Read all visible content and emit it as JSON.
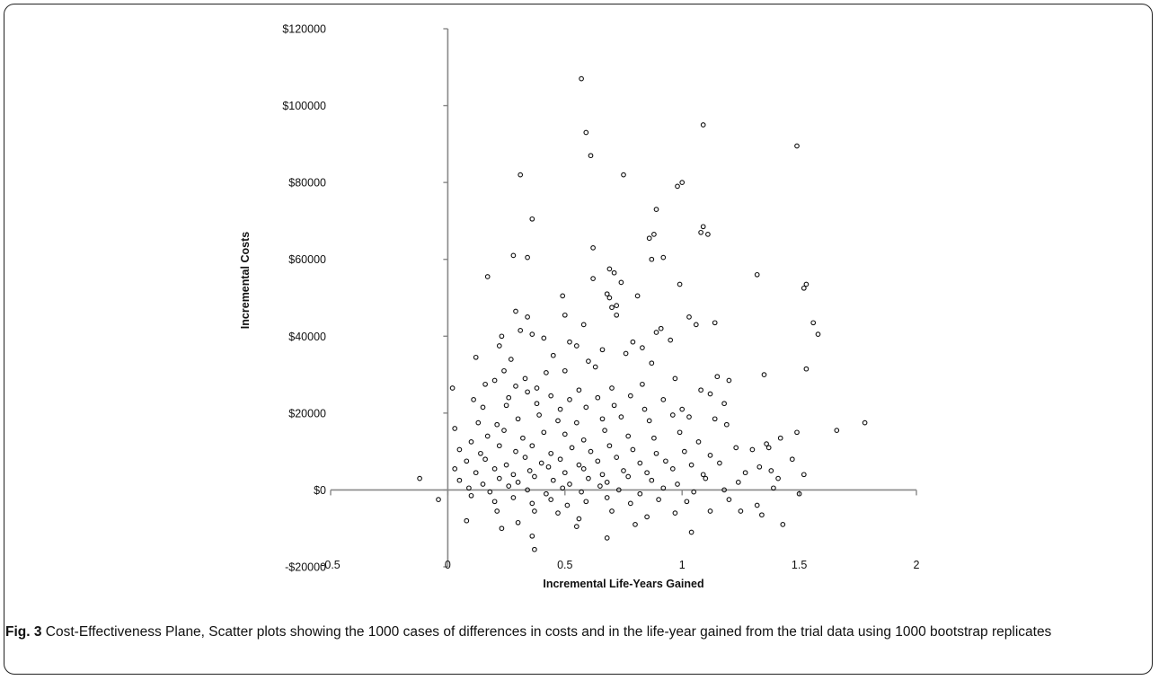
{
  "figure": {
    "label": "Fig. 3",
    "caption": "Cost-Effectiveness Plane, Scatter plots showing the 1000 cases of differences in costs and in the life-year gained from the trial data using 1000 bootstrap replicates"
  },
  "colors": {
    "marker": "#111111",
    "axis": "#888888",
    "frame": "#222222"
  },
  "chart_data": {
    "type": "scatter",
    "title": "",
    "xlabel": "Incremental Life-Years Gained",
    "ylabel": "Incremental Costs",
    "xlim": [
      -0.5,
      2
    ],
    "ylim": [
      -20000,
      120000
    ],
    "xticks": [
      -0.5,
      0,
      0.5,
      1,
      1.5,
      2
    ],
    "xtick_labels": [
      "-0.5",
      "0",
      "0.5",
      "1",
      "1.5",
      "2"
    ],
    "yticks": [
      -20000,
      0,
      20000,
      40000,
      60000,
      80000,
      100000,
      120000
    ],
    "ytick_labels": [
      "-$20000",
      "$0",
      "$20000",
      "$40000",
      "$60000",
      "$80000",
      "$100000",
      "$120000"
    ],
    "axes_cross_at": {
      "x": 0,
      "y": 0
    },
    "grid": false,
    "legend": "none",
    "marker": "open circle",
    "n_points_depicted": 1000,
    "series": [
      {
        "points": [
          [
            0.57,
            107000
          ],
          [
            0.59,
            93000
          ],
          [
            0.61,
            87000
          ],
          [
            1.09,
            95000
          ],
          [
            1.49,
            89500
          ],
          [
            0.31,
            82000
          ],
          [
            0.75,
            82000
          ],
          [
            0.98,
            79000
          ],
          [
            1.0,
            80000
          ],
          [
            0.89,
            73000
          ],
          [
            0.36,
            70500
          ],
          [
            1.09,
            68500
          ],
          [
            1.08,
            67000
          ],
          [
            1.11,
            66500
          ],
          [
            0.86,
            65500
          ],
          [
            0.88,
            66500
          ],
          [
            0.62,
            63000
          ],
          [
            0.28,
            61000
          ],
          [
            0.34,
            60500
          ],
          [
            0.87,
            60000
          ],
          [
            0.92,
            60500
          ],
          [
            0.69,
            57500
          ],
          [
            0.71,
            56500
          ],
          [
            1.32,
            56000
          ],
          [
            0.17,
            55500
          ],
          [
            0.62,
            55000
          ],
          [
            0.74,
            54000
          ],
          [
            1.52,
            52500
          ],
          [
            1.53,
            53500
          ],
          [
            0.99,
            53500
          ],
          [
            0.68,
            51000
          ],
          [
            0.49,
            50500
          ],
          [
            0.69,
            50000
          ],
          [
            0.81,
            50500
          ],
          [
            0.7,
            47500
          ],
          [
            0.29,
            46500
          ],
          [
            0.72,
            48000
          ],
          [
            0.72,
            45500
          ],
          [
            0.5,
            45500
          ],
          [
            0.34,
            45000
          ],
          [
            1.03,
            45000
          ],
          [
            1.56,
            43500
          ],
          [
            1.14,
            43500
          ],
          [
            0.58,
            43000
          ],
          [
            1.06,
            43000
          ],
          [
            1.58,
            40500
          ],
          [
            0.23,
            40000
          ],
          [
            0.31,
            41500
          ],
          [
            0.36,
            40500
          ],
          [
            0.41,
            39500
          ],
          [
            0.52,
            38500
          ],
          [
            0.55,
            37500
          ],
          [
            0.89,
            41000
          ],
          [
            0.91,
            42000
          ],
          [
            0.95,
            39000
          ],
          [
            0.79,
            38500
          ],
          [
            0.83,
            37000
          ],
          [
            0.66,
            36500
          ],
          [
            0.22,
            37500
          ],
          [
            0.27,
            34000
          ],
          [
            0.12,
            34500
          ],
          [
            0.45,
            35000
          ],
          [
            0.6,
            33500
          ],
          [
            0.76,
            35500
          ],
          [
            0.87,
            33000
          ],
          [
            1.35,
            30000
          ],
          [
            1.53,
            31500
          ],
          [
            0.24,
            31000
          ],
          [
            0.33,
            29000
          ],
          [
            0.42,
            30500
          ],
          [
            0.5,
            31000
          ],
          [
            0.63,
            32000
          ],
          [
            0.97,
            29000
          ],
          [
            1.15,
            29500
          ],
          [
            1.2,
            28500
          ],
          [
            0.16,
            27500
          ],
          [
            0.2,
            28500
          ],
          [
            0.29,
            27000
          ],
          [
            0.38,
            26500
          ],
          [
            0.56,
            26000
          ],
          [
            0.7,
            26500
          ],
          [
            0.83,
            27500
          ],
          [
            1.08,
            26000
          ],
          [
            1.12,
            25000
          ],
          [
            0.02,
            26500
          ],
          [
            0.11,
            23500
          ],
          [
            0.26,
            24000
          ],
          [
            0.34,
            25500
          ],
          [
            0.44,
            24500
          ],
          [
            0.52,
            23500
          ],
          [
            0.64,
            24000
          ],
          [
            0.78,
            24500
          ],
          [
            0.92,
            23500
          ],
          [
            1.18,
            22500
          ],
          [
            0.15,
            21500
          ],
          [
            0.25,
            22000
          ],
          [
            0.38,
            22500
          ],
          [
            0.48,
            21000
          ],
          [
            0.59,
            21500
          ],
          [
            0.71,
            22000
          ],
          [
            0.84,
            21000
          ],
          [
            1.0,
            21000
          ],
          [
            1.03,
            19000
          ],
          [
            0.03,
            16000
          ],
          [
            0.13,
            17500
          ],
          [
            0.21,
            17000
          ],
          [
            0.3,
            18500
          ],
          [
            0.39,
            19500
          ],
          [
            0.47,
            18000
          ],
          [
            0.55,
            17500
          ],
          [
            0.66,
            18500
          ],
          [
            0.74,
            19000
          ],
          [
            0.86,
            18000
          ],
          [
            0.96,
            19500
          ],
          [
            1.14,
            18500
          ],
          [
            1.19,
            17000
          ],
          [
            1.66,
            15500
          ],
          [
            1.78,
            17500
          ],
          [
            1.49,
            15000
          ],
          [
            1.36,
            12000
          ],
          [
            1.42,
            13500
          ],
          [
            0.1,
            12500
          ],
          [
            0.17,
            14000
          ],
          [
            0.24,
            15500
          ],
          [
            0.32,
            13500
          ],
          [
            0.41,
            15000
          ],
          [
            0.5,
            14500
          ],
          [
            0.58,
            13000
          ],
          [
            0.67,
            15500
          ],
          [
            0.77,
            14000
          ],
          [
            0.88,
            13500
          ],
          [
            0.99,
            15000
          ],
          [
            1.07,
            12500
          ],
          [
            1.23,
            11000
          ],
          [
            0.05,
            10500
          ],
          [
            0.14,
            9500
          ],
          [
            0.22,
            11500
          ],
          [
            0.29,
            10000
          ],
          [
            0.36,
            11500
          ],
          [
            0.44,
            9500
          ],
          [
            0.53,
            11000
          ],
          [
            0.61,
            10000
          ],
          [
            0.69,
            11500
          ],
          [
            0.79,
            10500
          ],
          [
            0.89,
            9500
          ],
          [
            1.01,
            10000
          ],
          [
            1.12,
            9000
          ],
          [
            1.3,
            10500
          ],
          [
            1.37,
            11000
          ],
          [
            0.08,
            7500
          ],
          [
            0.16,
            8000
          ],
          [
            0.25,
            6500
          ],
          [
            0.33,
            8500
          ],
          [
            0.4,
            7000
          ],
          [
            0.48,
            8000
          ],
          [
            0.56,
            6500
          ],
          [
            0.64,
            7500
          ],
          [
            0.72,
            8500
          ],
          [
            0.82,
            7000
          ],
          [
            0.93,
            7500
          ],
          [
            1.04,
            6500
          ],
          [
            1.16,
            7000
          ],
          [
            1.33,
            6000
          ],
          [
            1.47,
            8000
          ],
          [
            0.03,
            5500
          ],
          [
            0.12,
            4500
          ],
          [
            0.2,
            5500
          ],
          [
            0.28,
            4000
          ],
          [
            0.35,
            5000
          ],
          [
            0.43,
            6000
          ],
          [
            0.5,
            4500
          ],
          [
            0.58,
            5500
          ],
          [
            0.66,
            4000
          ],
          [
            0.75,
            5000
          ],
          [
            0.85,
            4500
          ],
          [
            0.96,
            5500
          ],
          [
            1.09,
            4000
          ],
          [
            1.27,
            4500
          ],
          [
            1.38,
            5000
          ],
          [
            1.52,
            4000
          ],
          [
            -0.12,
            3000
          ],
          [
            0.05,
            2500
          ],
          [
            0.15,
            1500
          ],
          [
            0.22,
            3000
          ],
          [
            0.3,
            2000
          ],
          [
            0.37,
            3500
          ],
          [
            0.45,
            2500
          ],
          [
            0.52,
            1500
          ],
          [
            0.6,
            3000
          ],
          [
            0.68,
            2000
          ],
          [
            0.77,
            3500
          ],
          [
            0.87,
            2500
          ],
          [
            0.98,
            1500
          ],
          [
            1.1,
            3000
          ],
          [
            1.24,
            2000
          ],
          [
            1.41,
            3000
          ],
          [
            1.39,
            500
          ],
          [
            0.09,
            500
          ],
          [
            0.18,
            -500
          ],
          [
            0.26,
            1000
          ],
          [
            0.34,
            0
          ],
          [
            0.42,
            -1000
          ],
          [
            0.49,
            500
          ],
          [
            0.57,
            -500
          ],
          [
            0.65,
            1000
          ],
          [
            0.73,
            0
          ],
          [
            0.82,
            -1000
          ],
          [
            0.92,
            500
          ],
          [
            1.05,
            -500
          ],
          [
            1.18,
            0
          ],
          [
            1.5,
            -1000
          ],
          [
            -0.04,
            -2500
          ],
          [
            0.1,
            -1500
          ],
          [
            0.2,
            -3000
          ],
          [
            0.28,
            -2000
          ],
          [
            0.36,
            -3500
          ],
          [
            0.44,
            -2500
          ],
          [
            0.51,
            -4000
          ],
          [
            0.59,
            -3000
          ],
          [
            0.68,
            -2000
          ],
          [
            0.78,
            -3500
          ],
          [
            0.9,
            -2500
          ],
          [
            1.02,
            -3000
          ],
          [
            1.2,
            -2500
          ],
          [
            1.32,
            -4000
          ],
          [
            0.08,
            -8000
          ],
          [
            0.3,
            -8500
          ],
          [
            0.37,
            -5500
          ],
          [
            0.47,
            -6000
          ],
          [
            0.56,
            -7500
          ],
          [
            0.7,
            -5500
          ],
          [
            0.85,
            -7000
          ],
          [
            0.97,
            -6000
          ],
          [
            1.25,
            -5500
          ],
          [
            1.34,
            -6500
          ],
          [
            0.23,
            -10000
          ],
          [
            0.36,
            -12000
          ],
          [
            0.68,
            -12500
          ],
          [
            1.04,
            -11000
          ],
          [
            1.43,
            -9000
          ],
          [
            0.37,
            -15500
          ],
          [
            0.21,
            -5500
          ],
          [
            0.55,
            -9500
          ],
          [
            0.8,
            -9000
          ],
          [
            1.12,
            -5500
          ]
        ]
      }
    ]
  }
}
